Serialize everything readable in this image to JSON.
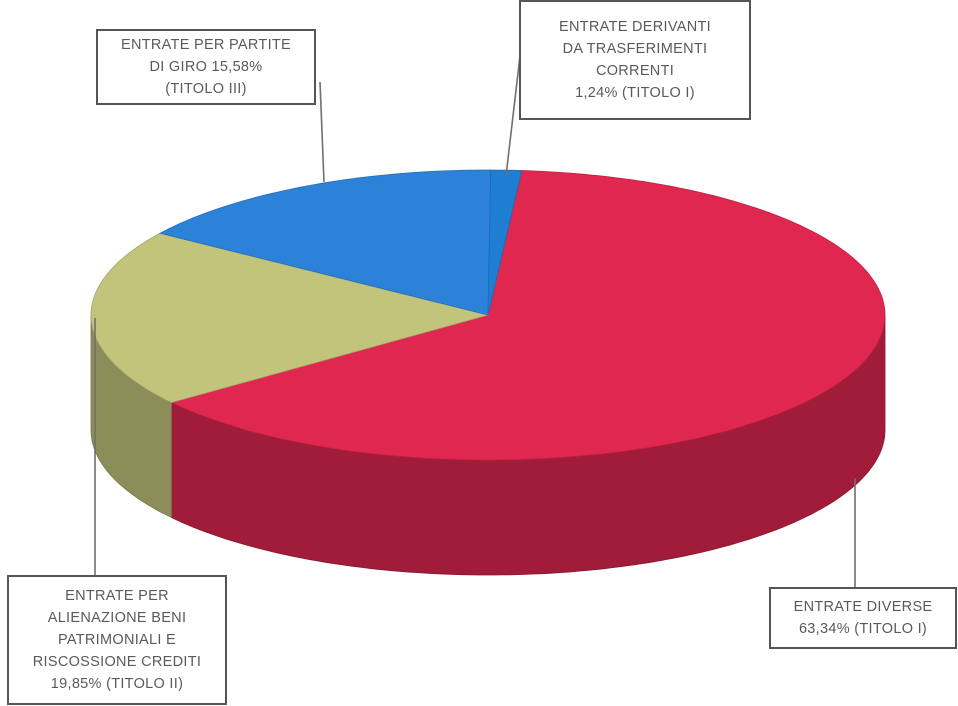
{
  "chart_data": {
    "type": "pie",
    "three_d": true,
    "categories": [
      [
        "ENTRATE DIVERSE",
        "63,34% (TITOLO I)"
      ],
      [
        "ENTRATE PER",
        "ALIENAZIONE BENI",
        "PATRIMONIALI E",
        "RISCOSSIONE CREDITI",
        "19,85% (TITOLO II)"
      ],
      [
        "ENTRATE PER PARTITE",
        "DI GIRO 15,58%",
        "(TITOLO III)"
      ],
      [
        "ENTRATE DERIVANTI",
        "DA TRASFERIMENTI",
        "CORRENTI",
        "1,24% (TITOLO  I)"
      ]
    ],
    "values": [
      63.34,
      19.85,
      15.58,
      1.24
    ],
    "colors": [
      "#e0274f",
      "#c3c47c",
      "#2b82d8",
      "#1f7ed2"
    ]
  }
}
